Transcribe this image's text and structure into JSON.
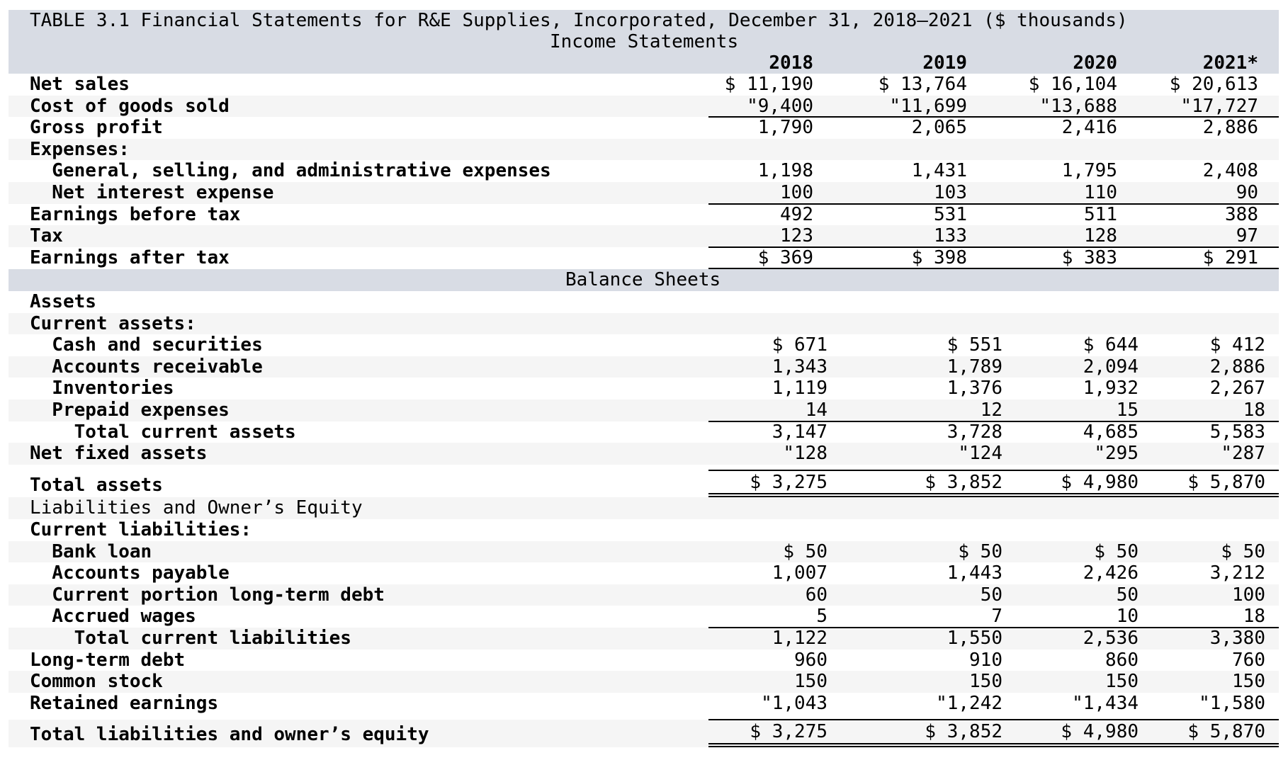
{
  "title": "TABLE 3.1 Financial Statements for R&E Supplies, Incorporated, December 31, 2018–2021 ($ thousands)",
  "income": {
    "heading": "Income Statements",
    "years": [
      "2018",
      "2019",
      "2020",
      "2021*"
    ],
    "rows": [
      {
        "label": "Net sales",
        "values": [
          "$ 11,190",
          "$ 13,764",
          "$ 16,104",
          "$ 20,613"
        ]
      },
      {
        "label": "Cost of goods sold",
        "values": [
          "\"9,400",
          "\"11,699",
          "\"13,688",
          "\"17,727"
        ]
      },
      {
        "label": "Gross profit",
        "values": [
          "1,790",
          "2,065",
          "2,416",
          "2,886"
        ]
      },
      {
        "label": "Expenses:",
        "values": [
          "",
          "",
          "",
          ""
        ]
      },
      {
        "label": "  General, selling, and administrative expenses",
        "values": [
          "1,198",
          "1,431",
          "1,795",
          "2,408"
        ]
      },
      {
        "label": "  Net interest expense",
        "values": [
          "100",
          "103",
          "110",
          "90"
        ]
      },
      {
        "label": "Earnings before tax",
        "values": [
          "492",
          "531",
          "511",
          "388"
        ]
      },
      {
        "label": "Tax",
        "values": [
          "123",
          "133",
          "128",
          "97"
        ]
      },
      {
        "label": "Earnings after tax",
        "values": [
          "$ 369",
          "$ 398",
          "$ 383",
          "$ 291"
        ]
      }
    ]
  },
  "balance": {
    "heading": "Balance Sheets",
    "rows": [
      {
        "label": "Assets",
        "values": [
          "",
          "",
          "",
          ""
        ]
      },
      {
        "label": "Current assets:",
        "values": [
          "",
          "",
          "",
          ""
        ]
      },
      {
        "label": "  Cash and securities",
        "values": [
          "$ 671",
          "$ 551",
          "$ 644",
          "$ 412"
        ]
      },
      {
        "label": "  Accounts receivable",
        "values": [
          "1,343",
          "1,789",
          "2,094",
          "2,886"
        ]
      },
      {
        "label": "  Inventories",
        "values": [
          "1,119",
          "1,376",
          "1,932",
          "2,267"
        ]
      },
      {
        "label": "  Prepaid expenses",
        "values": [
          "14",
          "12",
          "15",
          "18"
        ]
      },
      {
        "label": "    Total current assets",
        "values": [
          "3,147",
          "3,728",
          "4,685",
          "5,583"
        ]
      },
      {
        "label": "Net fixed assets",
        "values": [
          "\"128",
          "\"124",
          "\"295",
          "\"287"
        ]
      },
      {
        "label": "Total assets",
        "values": [
          "$ 3,275",
          "$ 3,852",
          "$ 4,980",
          "$ 5,870"
        ]
      },
      {
        "label": "Liabilities and Owner’s Equity",
        "values": [
          "",
          "",
          "",
          ""
        ]
      },
      {
        "label": "Current liabilities:",
        "values": [
          "",
          "",
          "",
          ""
        ]
      },
      {
        "label": "  Bank loan",
        "values": [
          "$ 50",
          "$ 50",
          "$ 50",
          "$ 50"
        ]
      },
      {
        "label": "  Accounts payable",
        "values": [
          "1,007",
          "1,443",
          "2,426",
          "3,212"
        ]
      },
      {
        "label": "  Current portion long-term debt",
        "values": [
          "60",
          "50",
          "50",
          "100"
        ]
      },
      {
        "label": "  Accrued wages",
        "values": [
          "5",
          "7",
          "10",
          "18"
        ]
      },
      {
        "label": "    Total current liabilities",
        "values": [
          "1,122",
          "1,550",
          "2,536",
          "3,380"
        ]
      },
      {
        "label": "Long-term debt",
        "values": [
          "960",
          "910",
          "860",
          "760"
        ]
      },
      {
        "label": "Common stock",
        "values": [
          "150",
          "150",
          "150",
          "150"
        ]
      },
      {
        "label": "Retained earnings",
        "values": [
          "\"1,043",
          "\"1,242",
          "\"1,434",
          "\"1,580"
        ]
      },
      {
        "label": "Total liabilities and owner’s equity",
        "values": [
          "$ 3,275",
          "$ 3,852",
          "$ 4,980",
          "$ 5,870"
        ]
      }
    ]
  },
  "colors": {
    "header_band": "#d8dce4",
    "row_alt": "#f5f5f5",
    "text": "#000000"
  }
}
